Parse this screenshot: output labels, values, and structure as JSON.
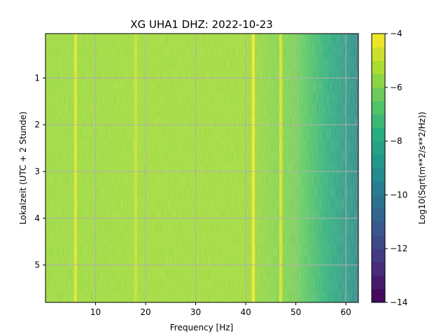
{
  "chart_data": {
    "type": "heatmap",
    "title": "XG UHA1  DHZ: 2022-10-23",
    "xlabel": "Frequency [Hz]",
    "ylabel": "Lokalzeit (UTC + 2 Stunde)",
    "xlim": [
      0,
      62.5
    ],
    "ylim": [
      5.8,
      0.05
    ],
    "x_ticks": [
      10,
      20,
      30,
      40,
      50,
      60
    ],
    "y_ticks": [
      1,
      2,
      3,
      4,
      5
    ],
    "grid": true,
    "colormap": "viridis",
    "colorbar": {
      "label": "Log10(Sqrt(m**2/s**2/Hz))",
      "range": [
        -14,
        -4
      ],
      "ticks": [
        -4,
        -6,
        -8,
        -10,
        -12,
        -14
      ]
    },
    "features": [
      {
        "name": "",
        "x": 6,
        "value": -4.3
      },
      {
        "name": "",
        "x": 18,
        "value": -4.8
      },
      {
        "name": "",
        "x": 41.5,
        "value": -4.0
      },
      {
        "name": "",
        "x": 47,
        "value": -4.5
      }
    ],
    "background_level_by_frequency": [
      {
        "x": 0,
        "value": -5.6
      },
      {
        "x": 20,
        "value": -5.5
      },
      {
        "x": 40,
        "value": -5.5
      },
      {
        "x": 50,
        "value": -6.2
      },
      {
        "x": 55,
        "value": -7.5
      },
      {
        "x": 60,
        "value": -8.8
      },
      {
        "x": 62.5,
        "value": -9.5
      }
    ]
  }
}
